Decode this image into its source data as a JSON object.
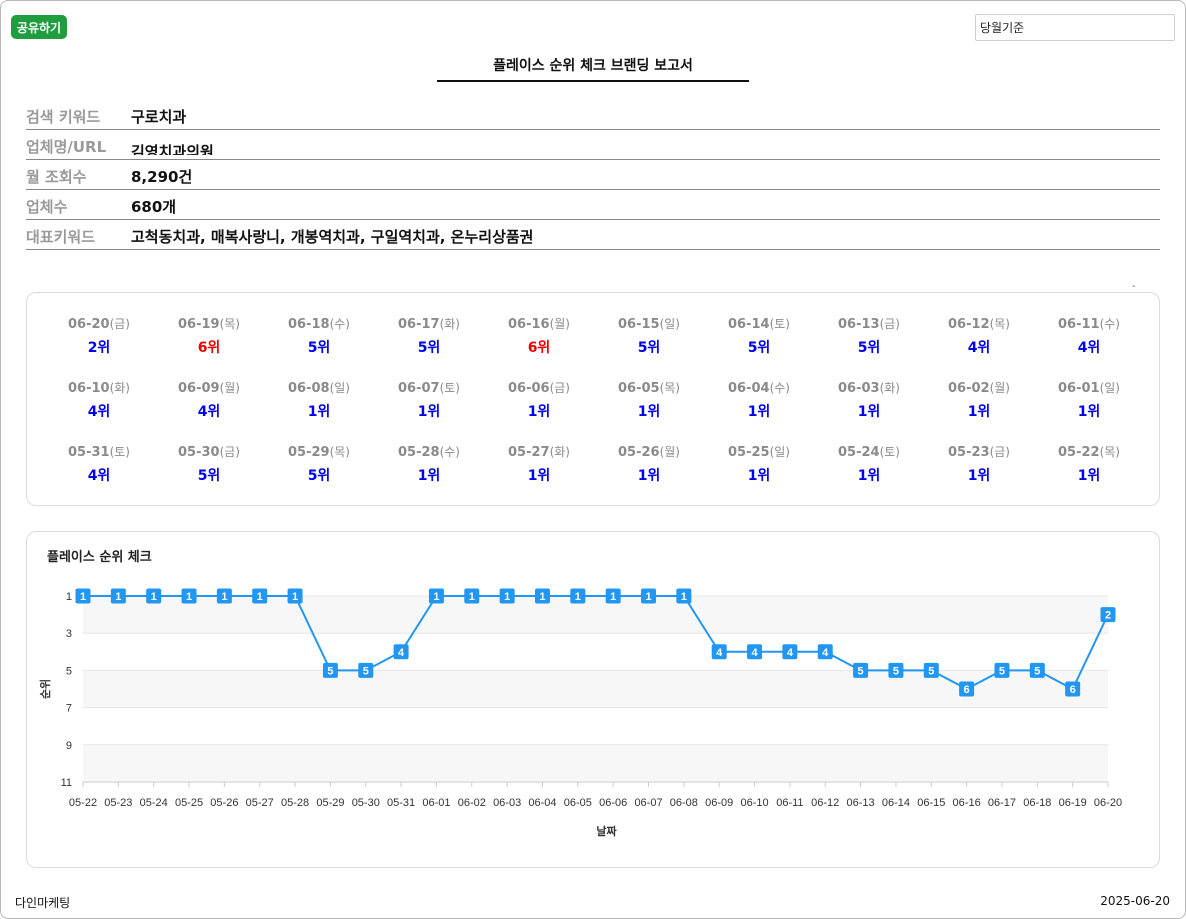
{
  "header": {
    "share_label": "공유하기",
    "basis_value": "당월기준",
    "title": "플레이스 순위 체크 브랜딩 보고서"
  },
  "info": [
    {
      "label": "검색 키워드",
      "value": "구로치과"
    },
    {
      "label": "업체명/URL",
      "value": "김영치과의원"
    },
    {
      "label": "월 조회수",
      "value": "8,290건"
    },
    {
      "label": "업체수",
      "value": "680개"
    },
    {
      "label": "대표키워드",
      "value": "고척동치과, 매복사랑니, 개봉역치과, 구일역치과, 온누리상품권"
    }
  ],
  "dash": "-",
  "ranks": [
    {
      "date": "06-20",
      "dow": "(금)",
      "rank": "2위",
      "color": "#0000ee"
    },
    {
      "date": "06-19",
      "dow": "(목)",
      "rank": "6위",
      "color": "#ee0000"
    },
    {
      "date": "06-18",
      "dow": "(수)",
      "rank": "5위",
      "color": "#0000ee"
    },
    {
      "date": "06-17",
      "dow": "(화)",
      "rank": "5위",
      "color": "#0000ee"
    },
    {
      "date": "06-16",
      "dow": "(월)",
      "rank": "6위",
      "color": "#ee0000"
    },
    {
      "date": "06-15",
      "dow": "(일)",
      "rank": "5위",
      "color": "#0000ee"
    },
    {
      "date": "06-14",
      "dow": "(토)",
      "rank": "5위",
      "color": "#0000ee"
    },
    {
      "date": "06-13",
      "dow": "(금)",
      "rank": "5위",
      "color": "#0000ee"
    },
    {
      "date": "06-12",
      "dow": "(목)",
      "rank": "4위",
      "color": "#0000ee"
    },
    {
      "date": "06-11",
      "dow": "(수)",
      "rank": "4위",
      "color": "#0000ee"
    },
    {
      "date": "06-10",
      "dow": "(화)",
      "rank": "4위",
      "color": "#0000ee"
    },
    {
      "date": "06-09",
      "dow": "(월)",
      "rank": "4위",
      "color": "#0000ee"
    },
    {
      "date": "06-08",
      "dow": "(일)",
      "rank": "1위",
      "color": "#0000ee"
    },
    {
      "date": "06-07",
      "dow": "(토)",
      "rank": "1위",
      "color": "#0000ee"
    },
    {
      "date": "06-06",
      "dow": "(금)",
      "rank": "1위",
      "color": "#0000ee"
    },
    {
      "date": "06-05",
      "dow": "(목)",
      "rank": "1위",
      "color": "#0000ee"
    },
    {
      "date": "06-04",
      "dow": "(수)",
      "rank": "1위",
      "color": "#0000ee"
    },
    {
      "date": "06-03",
      "dow": "(화)",
      "rank": "1위",
      "color": "#0000ee"
    },
    {
      "date": "06-02",
      "dow": "(월)",
      "rank": "1위",
      "color": "#0000ee"
    },
    {
      "date": "06-01",
      "dow": "(일)",
      "rank": "1위",
      "color": "#0000ee"
    },
    {
      "date": "05-31",
      "dow": "(토)",
      "rank": "4위",
      "color": "#0000ee"
    },
    {
      "date": "05-30",
      "dow": "(금)",
      "rank": "5위",
      "color": "#0000ee"
    },
    {
      "date": "05-29",
      "dow": "(목)",
      "rank": "5위",
      "color": "#0000ee"
    },
    {
      "date": "05-28",
      "dow": "(수)",
      "rank": "1위",
      "color": "#0000ee"
    },
    {
      "date": "05-27",
      "dow": "(화)",
      "rank": "1위",
      "color": "#0000ee"
    },
    {
      "date": "05-26",
      "dow": "(월)",
      "rank": "1위",
      "color": "#0000ee"
    },
    {
      "date": "05-25",
      "dow": "(일)",
      "rank": "1위",
      "color": "#0000ee"
    },
    {
      "date": "05-24",
      "dow": "(토)",
      "rank": "1위",
      "color": "#0000ee"
    },
    {
      "date": "05-23",
      "dow": "(금)",
      "rank": "1위",
      "color": "#0000ee"
    },
    {
      "date": "05-22",
      "dow": "(목)",
      "rank": "1위",
      "color": "#0000ee"
    }
  ],
  "chart_data": {
    "type": "line",
    "title": "플레이스 순위 체크",
    "xlabel": "날짜",
    "ylabel": "순위",
    "categories": [
      "05-22",
      "05-23",
      "05-24",
      "05-25",
      "05-26",
      "05-27",
      "05-28",
      "05-29",
      "05-30",
      "05-31",
      "06-01",
      "06-02",
      "06-03",
      "06-04",
      "06-05",
      "06-06",
      "06-07",
      "06-08",
      "06-09",
      "06-10",
      "06-11",
      "06-12",
      "06-13",
      "06-14",
      "06-15",
      "06-16",
      "06-17",
      "06-18",
      "06-19",
      "06-20"
    ],
    "values": [
      1,
      1,
      1,
      1,
      1,
      1,
      1,
      5,
      5,
      4,
      1,
      1,
      1,
      1,
      1,
      1,
      1,
      1,
      4,
      4,
      4,
      4,
      5,
      5,
      5,
      6,
      5,
      5,
      6,
      2
    ],
    "yticks": [
      1,
      3,
      5,
      7,
      9,
      11
    ],
    "ylim": [
      1,
      11
    ],
    "y_reversed": true,
    "line_color": "#2196f3",
    "band_color": "#f7f7f7"
  },
  "footer": {
    "company": "다인마케팅",
    "date": "2025-06-20"
  }
}
